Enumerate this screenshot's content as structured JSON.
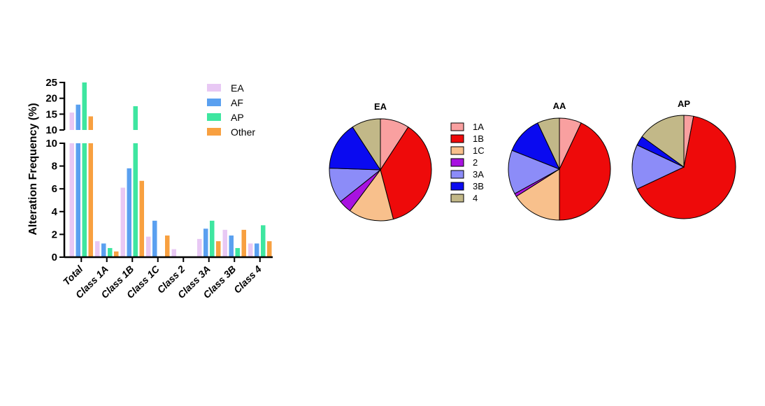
{
  "chart_data": [
    {
      "type": "bar",
      "ylabel": "Alteration Frequency (%)",
      "axis_break": {
        "lower": [
          0,
          10
        ],
        "upper": [
          10,
          25
        ]
      },
      "lower_ticks": [
        0,
        2,
        4,
        6,
        8,
        10
      ],
      "upper_ticks": [
        10,
        15,
        20,
        25
      ],
      "categories": [
        "Total",
        "Class 1A",
        "Class 1B",
        "Class 1C",
        "Class 2",
        "Class 3A",
        "Class 3B",
        "Class 4"
      ],
      "series": [
        {
          "name": "EA",
          "color": "#e8c8f4",
          "values": [
            15.5,
            1.4,
            6.1,
            1.8,
            0.7,
            1.6,
            2.4,
            1.2
          ]
        },
        {
          "name": "AF",
          "color": "#5aa0f0",
          "values": [
            18.0,
            1.2,
            7.8,
            3.2,
            0.0,
            2.5,
            1.9,
            1.2
          ]
        },
        {
          "name": "AP",
          "color": "#3ee6a0",
          "values": [
            25.0,
            0.8,
            17.5,
            0.0,
            0.0,
            3.2,
            0.8,
            2.8
          ]
        },
        {
          "name": "Other",
          "color": "#f8a040",
          "values": [
            14.3,
            0.5,
            6.7,
            1.9,
            0.0,
            1.4,
            2.4,
            1.4
          ]
        }
      ],
      "legend_position": "top-right"
    },
    {
      "type": "pie",
      "title": "EA",
      "labels": [
        "1A",
        "1B",
        "1C",
        "2",
        "3A",
        "3B",
        "4"
      ],
      "values": [
        9,
        36,
        14,
        4,
        11,
        15,
        9
      ]
    },
    {
      "type": "pie",
      "title": "AA",
      "labels": [
        "1A",
        "1B",
        "1C",
        "2",
        "3A",
        "3B",
        "4"
      ],
      "values": [
        7,
        43,
        16,
        1,
        14,
        12,
        7
      ]
    },
    {
      "type": "pie",
      "title": "AP",
      "labels": [
        "1A",
        "1B",
        "1C",
        "2",
        "3A",
        "3B",
        "4"
      ],
      "values": [
        3,
        65,
        0,
        0,
        14,
        3,
        15
      ]
    }
  ],
  "pie_legend": [
    {
      "label": "1A",
      "color": "#f9a0a0"
    },
    {
      "label": "1B",
      "color": "#ee0a0a"
    },
    {
      "label": "1C",
      "color": "#f8c08c"
    },
    {
      "label": "2",
      "color": "#a812e0"
    },
    {
      "label": "3A",
      "color": "#8c8cf8"
    },
    {
      "label": "3B",
      "color": "#0a0af0"
    },
    {
      "label": "4",
      "color": "#c2b888"
    }
  ]
}
